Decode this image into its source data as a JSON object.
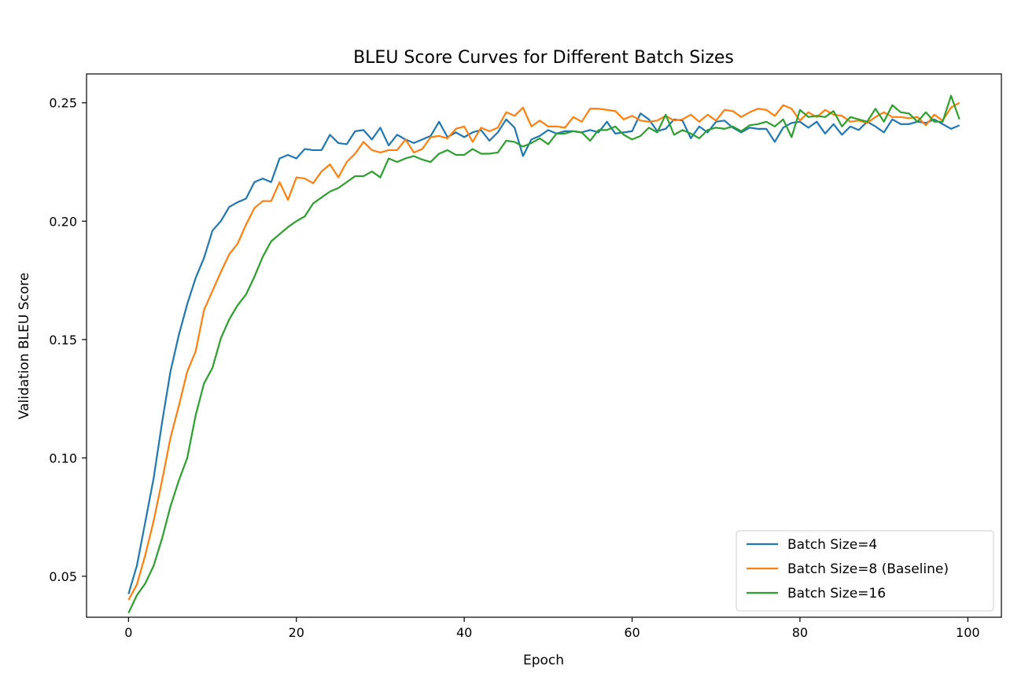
{
  "chart_data": {
    "type": "line",
    "title": "BLEU Score Curves for Different Batch Sizes",
    "xlabel": "Epoch",
    "ylabel": "Validation BLEU Score",
    "xlim": [
      -5,
      104
    ],
    "ylim": [
      0.0327,
      0.2622
    ],
    "xticks": [
      0,
      20,
      40,
      60,
      80,
      100
    ],
    "xtick_labels": [
      "0",
      "20",
      "40",
      "60",
      "80",
      "100"
    ],
    "yticks": [
      0.05,
      0.1,
      0.15,
      0.2,
      0.25
    ],
    "ytick_labels": [
      "0.05",
      "0.10",
      "0.15",
      "0.20",
      "0.25"
    ],
    "grid": false,
    "legend_position": "lower-right",
    "x": [
      0,
      1,
      2,
      3,
      4,
      5,
      6,
      7,
      8,
      9,
      10,
      11,
      12,
      13,
      14,
      15,
      16,
      17,
      18,
      19,
      20,
      21,
      22,
      23,
      24,
      25,
      26,
      27,
      28,
      29,
      30,
      31,
      32,
      33,
      34,
      35,
      36,
      37,
      38,
      39,
      40,
      41,
      42,
      43,
      44,
      45,
      46,
      47,
      48,
      49,
      50,
      51,
      52,
      53,
      54,
      55,
      56,
      57,
      58,
      59,
      60,
      61,
      62,
      63,
      64,
      65,
      66,
      67,
      68,
      69,
      70,
      71,
      72,
      73,
      74,
      75,
      76,
      77,
      78,
      79,
      80,
      81,
      82,
      83,
      84,
      85,
      86,
      87,
      88,
      89,
      90,
      91,
      92,
      93,
      94,
      95,
      96,
      97,
      98,
      99
    ],
    "series": [
      {
        "name": "Batch Size=4",
        "color": "#1f77b4",
        "values": [
          0.0425,
          0.0545,
          0.073,
          0.0915,
          0.115,
          0.1365,
          0.152,
          0.165,
          0.176,
          0.1845,
          0.196,
          0.2,
          0.206,
          0.208,
          0.2095,
          0.2165,
          0.218,
          0.2165,
          0.2265,
          0.228,
          0.2265,
          0.2305,
          0.23,
          0.23,
          0.2365,
          0.233,
          0.2325,
          0.238,
          0.2385,
          0.2345,
          0.2395,
          0.232,
          0.2365,
          0.2345,
          0.233,
          0.2345,
          0.236,
          0.242,
          0.2355,
          0.2375,
          0.2355,
          0.2375,
          0.2385,
          0.234,
          0.2375,
          0.243,
          0.2395,
          0.2275,
          0.2345,
          0.236,
          0.2385,
          0.237,
          0.238,
          0.238,
          0.2375,
          0.2385,
          0.2375,
          0.242,
          0.237,
          0.2375,
          0.238,
          0.2455,
          0.243,
          0.238,
          0.239,
          0.243,
          0.2425,
          0.235,
          0.24,
          0.2375,
          0.242,
          0.2425,
          0.2395,
          0.2375,
          0.2395,
          0.239,
          0.239,
          0.2335,
          0.2395,
          0.2415,
          0.242,
          0.2395,
          0.242,
          0.237,
          0.241,
          0.2365,
          0.24,
          0.2385,
          0.242,
          0.24,
          0.2375,
          0.243,
          0.241,
          0.241,
          0.242,
          0.2415,
          0.243,
          0.241,
          0.239,
          0.2405
        ]
      },
      {
        "name": "Batch Size=8 (Baseline)",
        "color": "#ff7f0e",
        "values": [
          0.04,
          0.0465,
          0.059,
          0.0735,
          0.0905,
          0.1085,
          0.122,
          0.1365,
          0.145,
          0.1625,
          0.1705,
          0.1785,
          0.186,
          0.1905,
          0.1985,
          0.2055,
          0.2085,
          0.2085,
          0.2165,
          0.209,
          0.2185,
          0.218,
          0.216,
          0.221,
          0.224,
          0.2185,
          0.225,
          0.2285,
          0.2335,
          0.23,
          0.229,
          0.23,
          0.23,
          0.2345,
          0.229,
          0.2305,
          0.2355,
          0.236,
          0.235,
          0.239,
          0.24,
          0.2335,
          0.2395,
          0.238,
          0.2395,
          0.246,
          0.2445,
          0.248,
          0.24,
          0.2425,
          0.24,
          0.24,
          0.2395,
          0.244,
          0.242,
          0.2475,
          0.2475,
          0.247,
          0.2465,
          0.243,
          0.2445,
          0.2425,
          0.242,
          0.2425,
          0.2445,
          0.2425,
          0.243,
          0.245,
          0.242,
          0.245,
          0.2425,
          0.247,
          0.2465,
          0.244,
          0.246,
          0.2475,
          0.247,
          0.2445,
          0.249,
          0.2475,
          0.2425,
          0.246,
          0.244,
          0.247,
          0.245,
          0.2445,
          0.242,
          0.2425,
          0.2415,
          0.244,
          0.246,
          0.244,
          0.244,
          0.2435,
          0.244,
          0.2405,
          0.245,
          0.2425,
          0.248,
          0.25
        ]
      },
      {
        "name": "Batch Size=16",
        "color": "#2ca02c",
        "values": [
          0.0345,
          0.042,
          0.047,
          0.0545,
          0.066,
          0.0795,
          0.0905,
          0.1,
          0.118,
          0.1315,
          0.138,
          0.1505,
          0.1585,
          0.1645,
          0.169,
          0.1765,
          0.185,
          0.1915,
          0.1945,
          0.1975,
          0.2,
          0.202,
          0.2075,
          0.21,
          0.2125,
          0.214,
          0.2165,
          0.219,
          0.219,
          0.221,
          0.2185,
          0.2265,
          0.225,
          0.2265,
          0.2275,
          0.226,
          0.225,
          0.2285,
          0.23,
          0.228,
          0.228,
          0.2305,
          0.2285,
          0.2285,
          0.229,
          0.234,
          0.2335,
          0.2315,
          0.233,
          0.235,
          0.2325,
          0.237,
          0.237,
          0.238,
          0.2375,
          0.234,
          0.2385,
          0.2385,
          0.24,
          0.2365,
          0.2345,
          0.236,
          0.2395,
          0.2375,
          0.245,
          0.2365,
          0.2385,
          0.237,
          0.235,
          0.2385,
          0.2395,
          0.239,
          0.24,
          0.238,
          0.2405,
          0.241,
          0.242,
          0.24,
          0.243,
          0.2355,
          0.247,
          0.244,
          0.2445,
          0.244,
          0.2465,
          0.24,
          0.244,
          0.243,
          0.242,
          0.2475,
          0.242,
          0.249,
          0.246,
          0.2455,
          0.242,
          0.246,
          0.242,
          0.242,
          0.253,
          0.243
        ]
      }
    ]
  }
}
